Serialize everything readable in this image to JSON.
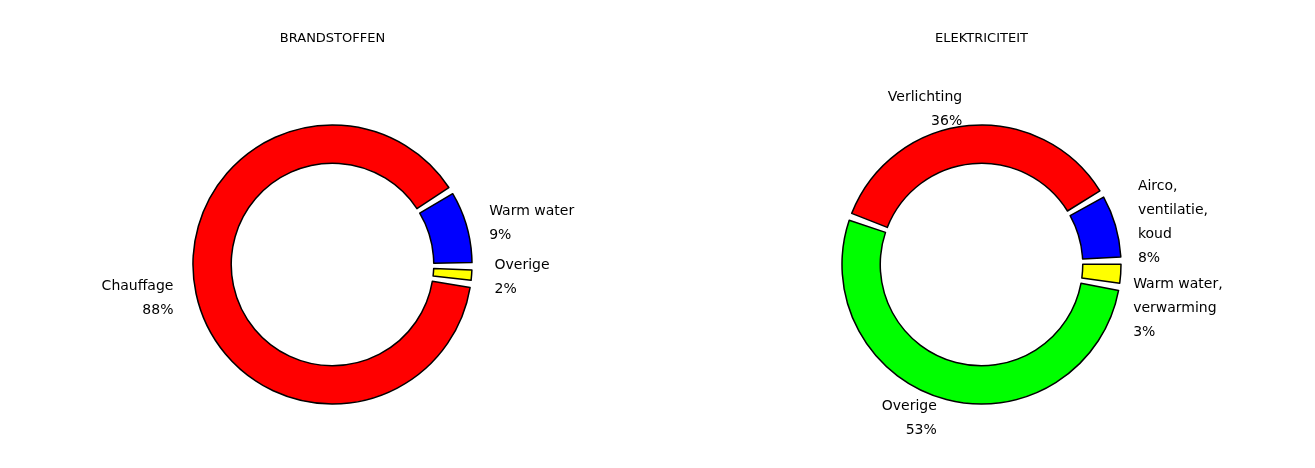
{
  "chart_data": [
    {
      "type": "donut",
      "title": "BRANDSTOFFEN",
      "categories": [
        "Chauffage",
        "Warm water",
        "Overige"
      ],
      "values": [
        88,
        9,
        2
      ],
      "value_labels": [
        "88%",
        "9%",
        "2%"
      ],
      "colors": [
        "#ff0000",
        "#0000ff",
        "#ffff00"
      ],
      "legend": false
    },
    {
      "type": "donut",
      "title": "ELEKTRICITEIT",
      "categories": [
        "Verlichting",
        "Airco,\nventilatie,\nkoud",
        "Warm water,\nverwarming",
        "Overige"
      ],
      "values": [
        36,
        8,
        3,
        53
      ],
      "value_labels": [
        "36%",
        "8%",
        "3%",
        "53%"
      ],
      "colors": [
        "#ff0000",
        "#0000ff",
        "#ffff00",
        "#00ff00"
      ],
      "legend": false
    }
  ]
}
